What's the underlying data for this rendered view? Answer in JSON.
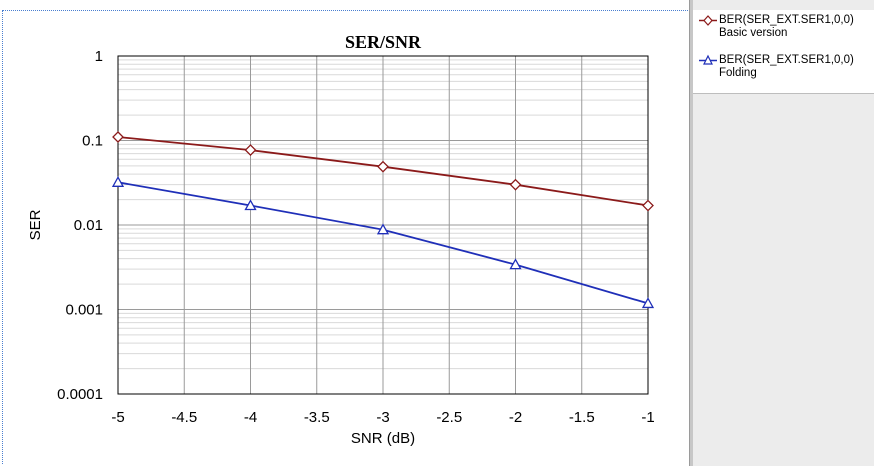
{
  "chart_data": {
    "type": "line",
    "title": "SER/SNR",
    "xlabel": "SNR (dB)",
    "ylabel": "SER",
    "xlim": [
      -5,
      -1
    ],
    "ylim": [
      0.0001,
      1
    ],
    "y_scale": "log",
    "grid": true,
    "legend_position": "right, outside plot",
    "x_tick_labels": [
      "-5",
      "-4.5",
      "-4",
      "-3.5",
      "-3",
      "-2.5",
      "-2",
      "-1.5",
      "-1"
    ],
    "y_tick_labels": [
      "1",
      "0.1",
      "0.01",
      "0.001",
      "0.0001"
    ],
    "series": [
      {
        "name": "BER(SER_EXT.SER1,0,0) Basic version",
        "color": "#8b1a1a",
        "marker": "diamond",
        "x": [
          -5,
          -4,
          -3,
          -2,
          -1
        ],
        "y": [
          0.11,
          0.077,
          0.049,
          0.03,
          0.017
        ]
      },
      {
        "name": "BER(SER_EXT.SER1,0,0) Folding",
        "color": "#1f2fb8",
        "marker": "triangle",
        "x": [
          -5,
          -4,
          -3,
          -2,
          -1
        ],
        "y": [
          0.032,
          0.017,
          0.0088,
          0.0034,
          0.00118
        ]
      }
    ]
  },
  "legend": {
    "items": [
      {
        "line1": "BER(SER_EXT.SER1,0,0)",
        "line2": "Basic version"
      },
      {
        "line1": "BER(SER_EXT.SER1,0,0)",
        "line2": "Folding"
      }
    ]
  }
}
